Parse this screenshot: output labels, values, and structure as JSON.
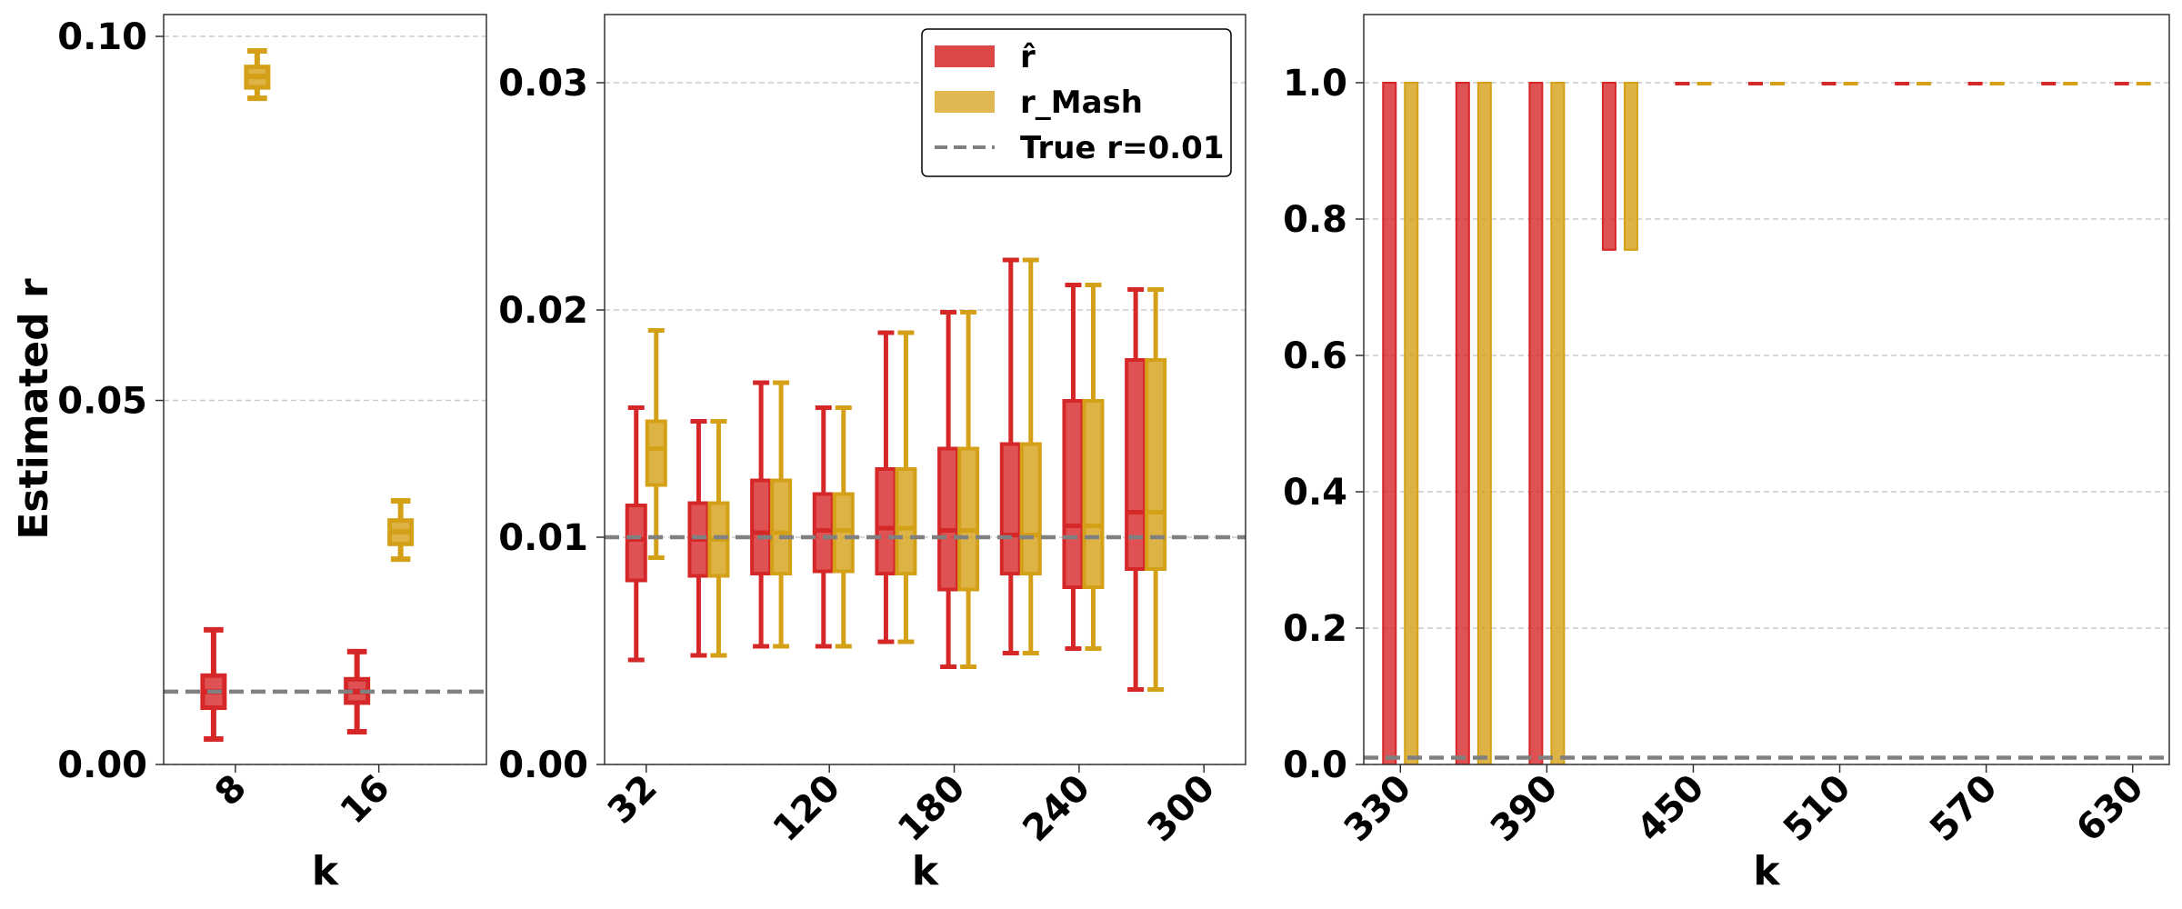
{
  "colors": {
    "r_hat": "#d62728",
    "r_mash": "#d4a017",
    "true_line": "#808080",
    "grid": "#cccccc"
  },
  "ylabel": "Estimated r",
  "legend": {
    "placement": "top-right of middle panel",
    "items": [
      {
        "label": "r̂",
        "series": "r_hat"
      },
      {
        "label": "r_Mash",
        "series": "r_mash"
      },
      {
        "label": "True r=0.01",
        "series": "true_line"
      }
    ]
  },
  "chart_data": [
    {
      "type": "box",
      "xlabel": "k",
      "ylim": [
        0,
        0.103
      ],
      "yticks": [
        0.0,
        0.05,
        0.1
      ],
      "ytick_labels": [
        "0.00",
        "0.05",
        "0.10"
      ],
      "xlim": [
        4,
        22
      ],
      "xticks": [
        8,
        16
      ],
      "xtick_labels": [
        "8",
        "16"
      ],
      "true_r": 0.01,
      "grid": true,
      "series": [
        {
          "name": "r̂",
          "key": "r_hat",
          "boxes": [
            {
              "k": 8,
              "whisker_low": 0.0035,
              "q1": 0.0078,
              "median": 0.01,
              "q3": 0.0122,
              "whisker_high": 0.0185
            },
            {
              "k": 16,
              "whisker_low": 0.0045,
              "q1": 0.0085,
              "median": 0.01,
              "q3": 0.0117,
              "whisker_high": 0.0155
            }
          ]
        },
        {
          "name": "r_Mash",
          "key": "r_mash",
          "boxes": [
            {
              "k": 8,
              "whisker_low": 0.0915,
              "q1": 0.093,
              "median": 0.0945,
              "q3": 0.0958,
              "whisker_high": 0.098
            },
            {
              "k": 16,
              "whisker_low": 0.0282,
              "q1": 0.0303,
              "median": 0.032,
              "q3": 0.0335,
              "whisker_high": 0.0362
            }
          ]
        }
      ]
    },
    {
      "type": "box",
      "xlabel": "k",
      "ylim": [
        0,
        0.033
      ],
      "yticks": [
        0.0,
        0.01,
        0.02,
        0.03
      ],
      "ytick_labels": [
        "0.00",
        "0.01",
        "0.02",
        "0.03"
      ],
      "xlim": [
        12,
        320
      ],
      "xticks": [
        32,
        120,
        180,
        240,
        300
      ],
      "xtick_labels": [
        "32",
        "120",
        "180",
        "240",
        "300"
      ],
      "true_r": 0.01,
      "grid": true,
      "series": [
        {
          "name": "r̂",
          "key": "r_hat",
          "boxes": [
            {
              "k": 32,
              "whisker_low": 0.0046,
              "q1": 0.0081,
              "median": 0.0099,
              "q3": 0.0114,
              "whisker_high": 0.0157
            },
            {
              "k": 62,
              "whisker_low": 0.0048,
              "q1": 0.0083,
              "median": 0.0099,
              "q3": 0.0115,
              "whisker_high": 0.0151
            },
            {
              "k": 92,
              "whisker_low": 0.0052,
              "q1": 0.0084,
              "median": 0.0102,
              "q3": 0.0125,
              "whisker_high": 0.0168
            },
            {
              "k": 122,
              "whisker_low": 0.0052,
              "q1": 0.0085,
              "median": 0.0103,
              "q3": 0.0119,
              "whisker_high": 0.0157
            },
            {
              "k": 152,
              "whisker_low": 0.0054,
              "q1": 0.0084,
              "median": 0.0104,
              "q3": 0.013,
              "whisker_high": 0.019
            },
            {
              "k": 182,
              "whisker_low": 0.0043,
              "q1": 0.0077,
              "median": 0.0103,
              "q3": 0.0139,
              "whisker_high": 0.0199
            },
            {
              "k": 212,
              "whisker_low": 0.0049,
              "q1": 0.0084,
              "median": 0.0101,
              "q3": 0.0141,
              "whisker_high": 0.0222
            },
            {
              "k": 242,
              "whisker_low": 0.0051,
              "q1": 0.0078,
              "median": 0.0105,
              "q3": 0.016,
              "whisker_high": 0.0211
            },
            {
              "k": 272,
              "whisker_low": 0.0033,
              "q1": 0.0086,
              "median": 0.0111,
              "q3": 0.0178,
              "whisker_high": 0.0209
            }
          ]
        },
        {
          "name": "r_Mash",
          "key": "r_mash",
          "boxes": [
            {
              "k": 32,
              "whisker_low": 0.0091,
              "q1": 0.0123,
              "median": 0.0139,
              "q3": 0.0151,
              "whisker_high": 0.0191
            },
            {
              "k": 62,
              "whisker_low": 0.0048,
              "q1": 0.0083,
              "median": 0.0099,
              "q3": 0.0115,
              "whisker_high": 0.0151
            },
            {
              "k": 92,
              "whisker_low": 0.0052,
              "q1": 0.0084,
              "median": 0.0102,
              "q3": 0.0125,
              "whisker_high": 0.0168
            },
            {
              "k": 122,
              "whisker_low": 0.0052,
              "q1": 0.0085,
              "median": 0.0103,
              "q3": 0.0119,
              "whisker_high": 0.0157
            },
            {
              "k": 152,
              "whisker_low": 0.0054,
              "q1": 0.0084,
              "median": 0.0104,
              "q3": 0.013,
              "whisker_high": 0.019
            },
            {
              "k": 182,
              "whisker_low": 0.0043,
              "q1": 0.0077,
              "median": 0.0103,
              "q3": 0.0139,
              "whisker_high": 0.0199
            },
            {
              "k": 212,
              "whisker_low": 0.0049,
              "q1": 0.0084,
              "median": 0.0101,
              "q3": 0.0141,
              "whisker_high": 0.0222
            },
            {
              "k": 242,
              "whisker_low": 0.0051,
              "q1": 0.0078,
              "median": 0.0105,
              "q3": 0.016,
              "whisker_high": 0.0211
            },
            {
              "k": 272,
              "whisker_low": 0.0033,
              "q1": 0.0086,
              "median": 0.0111,
              "q3": 0.0178,
              "whisker_high": 0.0209
            }
          ]
        }
      ]
    },
    {
      "type": "box",
      "xlabel": "k",
      "ylim": [
        0,
        1.1
      ],
      "yticks": [
        0.0,
        0.2,
        0.4,
        0.6,
        0.8,
        1.0
      ],
      "ytick_labels": [
        "0.0",
        "0.2",
        "0.4",
        "0.6",
        "0.8",
        "1.0"
      ],
      "xlim": [
        315,
        645
      ],
      "xticks": [
        330,
        390,
        450,
        510,
        570,
        630
      ],
      "xtick_labels": [
        "330",
        "390",
        "450",
        "510",
        "570",
        "630"
      ],
      "true_r": 0.01,
      "grid": true,
      "series": [
        {
          "name": "r̂",
          "key": "r_hat",
          "boxes": [
            {
              "k": 330,
              "whisker_low": 0.0,
              "q1": 0.0,
              "median": 1.0,
              "q3": 1.0,
              "whisker_high": 1.0
            },
            {
              "k": 360,
              "whisker_low": 0.0,
              "q1": 0.0,
              "median": 1.0,
              "q3": 1.0,
              "whisker_high": 1.0
            },
            {
              "k": 390,
              "whisker_low": 0.0,
              "q1": 0.0,
              "median": 1.0,
              "q3": 1.0,
              "whisker_high": 1.0
            },
            {
              "k": 420,
              "whisker_low": 0.755,
              "q1": 0.755,
              "median": 1.0,
              "q3": 1.0,
              "whisker_high": 1.0
            },
            {
              "k": 450,
              "whisker_low": 1.0,
              "q1": 1.0,
              "median": 1.0,
              "q3": 1.0,
              "whisker_high": 1.0
            },
            {
              "k": 480,
              "whisker_low": 1.0,
              "q1": 1.0,
              "median": 1.0,
              "q3": 1.0,
              "whisker_high": 1.0
            },
            {
              "k": 510,
              "whisker_low": 1.0,
              "q1": 1.0,
              "median": 1.0,
              "q3": 1.0,
              "whisker_high": 1.0
            },
            {
              "k": 540,
              "whisker_low": 1.0,
              "q1": 1.0,
              "median": 1.0,
              "q3": 1.0,
              "whisker_high": 1.0
            },
            {
              "k": 570,
              "whisker_low": 1.0,
              "q1": 1.0,
              "median": 1.0,
              "q3": 1.0,
              "whisker_high": 1.0
            },
            {
              "k": 600,
              "whisker_low": 1.0,
              "q1": 1.0,
              "median": 1.0,
              "q3": 1.0,
              "whisker_high": 1.0
            },
            {
              "k": 630,
              "whisker_low": 1.0,
              "q1": 1.0,
              "median": 1.0,
              "q3": 1.0,
              "whisker_high": 1.0
            }
          ]
        },
        {
          "name": "r_Mash",
          "key": "r_mash",
          "boxes": [
            {
              "k": 330,
              "whisker_low": 0.0,
              "q1": 0.0,
              "median": 1.0,
              "q3": 1.0,
              "whisker_high": 1.0
            },
            {
              "k": 360,
              "whisker_low": 0.0,
              "q1": 0.0,
              "median": 1.0,
              "q3": 1.0,
              "whisker_high": 1.0
            },
            {
              "k": 390,
              "whisker_low": 0.0,
              "q1": 0.0,
              "median": 1.0,
              "q3": 1.0,
              "whisker_high": 1.0
            },
            {
              "k": 420,
              "whisker_low": 0.755,
              "q1": 0.755,
              "median": 1.0,
              "q3": 1.0,
              "whisker_high": 1.0
            },
            {
              "k": 450,
              "whisker_low": 1.0,
              "q1": 1.0,
              "median": 1.0,
              "q3": 1.0,
              "whisker_high": 1.0
            },
            {
              "k": 480,
              "whisker_low": 1.0,
              "q1": 1.0,
              "median": 1.0,
              "q3": 1.0,
              "whisker_high": 1.0
            },
            {
              "k": 510,
              "whisker_low": 1.0,
              "q1": 1.0,
              "median": 1.0,
              "q3": 1.0,
              "whisker_high": 1.0
            },
            {
              "k": 540,
              "whisker_low": 1.0,
              "q1": 1.0,
              "median": 1.0,
              "q3": 1.0,
              "whisker_high": 1.0
            },
            {
              "k": 570,
              "whisker_low": 1.0,
              "q1": 1.0,
              "median": 1.0,
              "q3": 1.0,
              "whisker_high": 1.0
            },
            {
              "k": 600,
              "whisker_low": 1.0,
              "q1": 1.0,
              "median": 1.0,
              "q3": 1.0,
              "whisker_high": 1.0
            },
            {
              "k": 630,
              "whisker_low": 1.0,
              "q1": 1.0,
              "median": 1.0,
              "q3": 1.0,
              "whisker_high": 1.0
            }
          ]
        }
      ]
    }
  ]
}
